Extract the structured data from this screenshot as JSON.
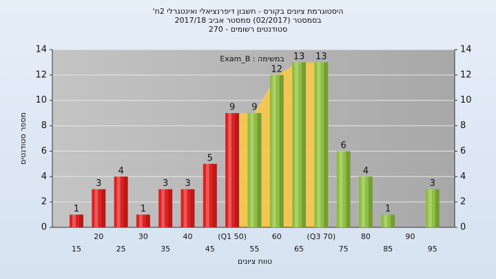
{
  "chart_data": {
    "type": "bar",
    "title": "היסטוגרמת ציונים בקורס - חשבון דיפרנציאלי ואינטגרלי 2ח'",
    "subtitle": "בסמסטר  (02/2017)  סמסטר אביב 2017/18",
    "subtitle2": "סטודנטים רשומים - 270",
    "annotation": "במשימה : Exam_B",
    "x_label": "טווח ציונים",
    "y_label": "מספר סטודנטים",
    "categories": [
      "15",
      "20",
      "25",
      "30",
      "35",
      "40",
      "45",
      "(Q1 50)",
      "55",
      "60",
      "65",
      "(Q3 70)",
      "75",
      "80",
      "85",
      "90",
      "95"
    ],
    "values": [
      1,
      3,
      4,
      1,
      3,
      3,
      5,
      9,
      9,
      12,
      13,
      13,
      6,
      4,
      1,
      null,
      3
    ],
    "colors": [
      "#e02020",
      "#e02020",
      "#e02020",
      "#e02020",
      "#e02020",
      "#e02020",
      "#e02020",
      "#e02020",
      "#8fbf3f",
      "#8fbf3f",
      "#8fbf3f",
      "#8fbf3f",
      "#8fbf3f",
      "#8fbf3f",
      "#8fbf3f",
      "#8fbf3f",
      "#8fbf3f"
    ],
    "band_color": "#f7c84a",
    "ylim": [
      0,
      14
    ],
    "yticks": [
      0,
      2,
      4,
      6,
      8,
      10,
      12,
      14
    ],
    "y2lim": [
      0,
      14
    ],
    "y2ticks": [
      0,
      2,
      4,
      6,
      8,
      10,
      12,
      14
    ],
    "grid": true
  }
}
